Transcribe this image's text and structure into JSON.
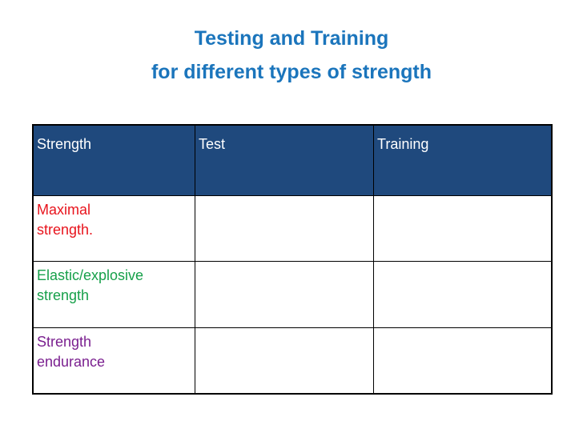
{
  "header": {
    "title_lines": [
      "Testing and Training",
      "for different types of strength"
    ]
  },
  "table": {
    "columns": [
      "Strength",
      "Test",
      "Training"
    ],
    "rows": [
      [
        "Maximal\nstrength."
      ],
      [
        "Elastic/explosive\nstrength"
      ],
      [
        "Strength\nendurance"
      ]
    ]
  }
}
